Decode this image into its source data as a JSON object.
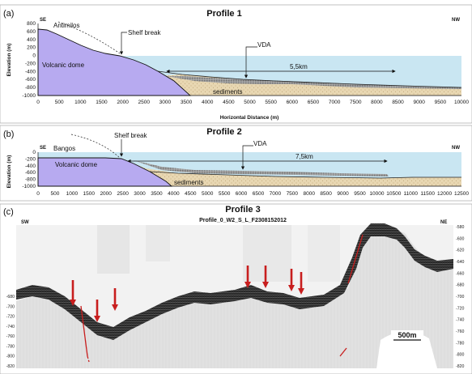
{
  "panel_a": {
    "letter": "(a)",
    "title": "Profile 1",
    "left_label": "SE",
    "right_label": "NW",
    "locality": "Antimilos",
    "shelf_break": "Shelf break",
    "vda": "VDA",
    "distance": "5,5km",
    "dome": "Volcanic dome",
    "sediments": "sediments",
    "y_label": "Elevation (m)",
    "x_label": "Horizontal Distance (m)",
    "y_ticks": [
      "800",
      "600",
      "400",
      "200",
      "0",
      "-200",
      "-400",
      "-600",
      "-800",
      "-1000"
    ],
    "x_ticks": [
      "0",
      "500",
      "1000",
      "1500",
      "2000",
      "2500",
      "3000",
      "3500",
      "4000",
      "4500",
      "5000",
      "5500",
      "6000",
      "6500",
      "7000",
      "7500",
      "8000",
      "8500",
      "9000",
      "9500",
      "10000"
    ]
  },
  "panel_b": {
    "letter": "(b)",
    "title": "Profile 2",
    "left_label": "SE",
    "right_label": "NW",
    "locality": "Bangos",
    "shelf_break": "Shelf break",
    "vda": "VDA",
    "distance": "7,5km",
    "dome": "Volcanic dome",
    "sediments": "sediments",
    "y_label": "Elevation (m)",
    "y_ticks": [
      "0",
      "-200",
      "-400",
      "-600",
      "-800",
      "-1000"
    ],
    "x_ticks": [
      "0",
      "500",
      "1000",
      "1500",
      "2000",
      "2500",
      "3000",
      "3500",
      "4000",
      "4500",
      "5000",
      "5500",
      "6000",
      "6500",
      "7000",
      "7500",
      "8000",
      "8500",
      "9000",
      "9500",
      "10000",
      "10500",
      "11000",
      "11500",
      "12000",
      "12500"
    ]
  },
  "panel_c": {
    "letter": "(c)",
    "title": "Profile 3",
    "left_label": "SW",
    "right_label": "NE",
    "line_name": "Profile_0_W2_S_L_F2308152012",
    "scale_bar": "500m",
    "y_ticks_left": [
      "-680",
      "-700",
      "-720",
      "-740",
      "-760",
      "-780",
      "-800",
      "-820"
    ],
    "y_ticks_right": [
      "-580",
      "-600",
      "-620",
      "-640",
      "-660",
      "-680",
      "-700",
      "-720",
      "-740",
      "-760",
      "-780",
      "-800",
      "-820"
    ]
  },
  "colors": {
    "sea": "#c9e6f2",
    "dome": "#b7aaf0",
    "sediment": "#e8d7b2",
    "vda": "#8a8a8a",
    "arrow": "#c81e1e"
  }
}
